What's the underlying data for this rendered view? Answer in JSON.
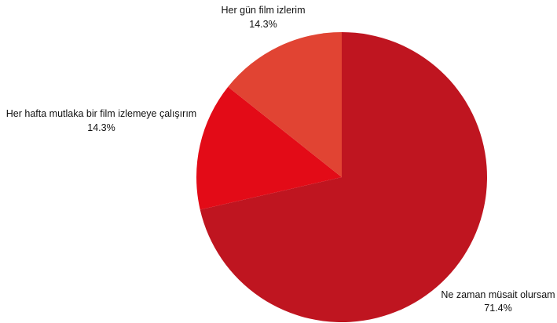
{
  "chart_data": {
    "type": "pie",
    "title": "",
    "slices": [
      {
        "label": "Ne zaman müsait olursam",
        "value": 71.4,
        "value_label": "71.4%",
        "color": "#bf1520",
        "label_side": "bottom-right"
      },
      {
        "label": "Her hafta mutlaka bir film izlemeye çalışırım",
        "value": 14.3,
        "value_label": "14.3%",
        "color": "#e30b17",
        "label_side": "left"
      },
      {
        "label": "Her gün film izlerim",
        "value": 14.3,
        "value_label": "14.3%",
        "color": "#e14433",
        "label_side": "top"
      }
    ],
    "start_angle": "top (12 o'clock), clockwise",
    "legend": "none",
    "slice_labels": "outside"
  }
}
